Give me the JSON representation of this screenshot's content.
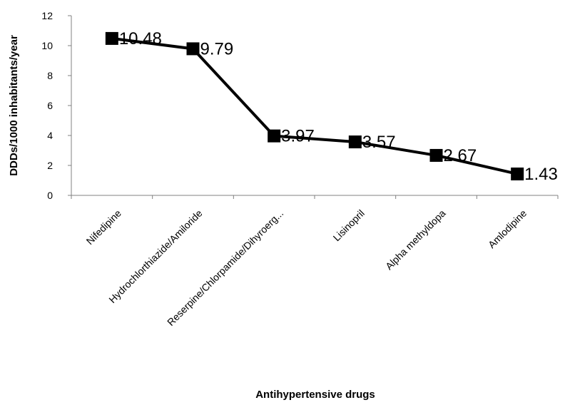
{
  "chart_data": {
    "type": "line",
    "categories": [
      "Nifedipine",
      "Hydrochlorthiazide/Amiloride",
      "Reserpine/Chlorpamide/Dihyroerg...",
      "Lisinopril",
      "Alpha methyldopa",
      "Amlodipine"
    ],
    "values": [
      10.48,
      9.79,
      3.97,
      3.57,
      2.67,
      1.43
    ],
    "data_labels": [
      "10.48",
      "9.79",
      "3.97",
      "3.57",
      "2.67",
      "1.43"
    ],
    "xlabel": "Antihypertensive drugs",
    "ylabel": "DDDs/1000 inhabitants/year",
    "ylim": [
      0,
      12
    ],
    "yticks": [
      "0",
      "2",
      "4",
      "6",
      "8",
      "10",
      "12"
    ],
    "grid": false,
    "legend": "none",
    "line_color": "#000000",
    "marker": "square"
  }
}
